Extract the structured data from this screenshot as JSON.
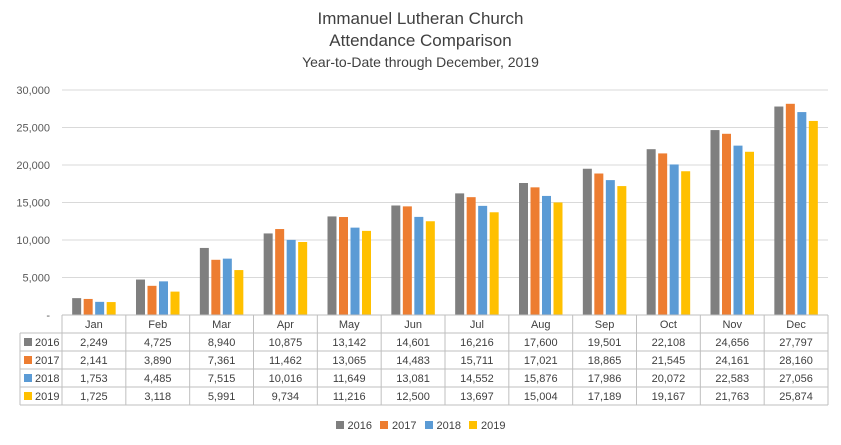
{
  "chart_data": {
    "type": "bar",
    "title": "Immanuel Lutheran Church",
    "subtitle": "Attendance Comparison",
    "subtitle2": "Year-to-Date through December, 2019",
    "categories": [
      "Jan",
      "Feb",
      "Mar",
      "Apr",
      "May",
      "Jun",
      "Jul",
      "Aug",
      "Sep",
      "Oct",
      "Nov",
      "Dec"
    ],
    "ylim": [
      0,
      30000
    ],
    "yticks": [
      "-",
      "5,000",
      "10,000",
      "15,000",
      "20,000",
      "25,000",
      "30,000"
    ],
    "xlabel": "",
    "ylabel": "",
    "legend_position": "bottom",
    "series": [
      {
        "name": "2016",
        "color": "#7f7f7f",
        "values": [
          2249,
          4725,
          8940,
          10875,
          13142,
          14601,
          16216,
          17600,
          19501,
          22108,
          24656,
          27797
        ],
        "labels": [
          "2,249",
          "4,725",
          "8,940",
          "10,875",
          "13,142",
          "14,601",
          "16,216",
          "17,600",
          "19,501",
          "22,108",
          "24,656",
          "27,797"
        ]
      },
      {
        "name": "2017",
        "color": "#ed7d31",
        "values": [
          2141,
          3890,
          7361,
          11462,
          13065,
          14483,
          15711,
          17021,
          18865,
          21545,
          24161,
          28160
        ],
        "labels": [
          "2,141",
          "3,890",
          "7,361",
          "11,462",
          "13,065",
          "14,483",
          "15,711",
          "17,021",
          "18,865",
          "21,545",
          "24,161",
          "28,160"
        ]
      },
      {
        "name": "2018",
        "color": "#5b9bd5",
        "values": [
          1753,
          4485,
          7515,
          10016,
          11649,
          13081,
          14552,
          15876,
          17986,
          20072,
          22583,
          27056
        ],
        "labels": [
          "1,753",
          "4,485",
          "7,515",
          "10,016",
          "11,649",
          "13,081",
          "14,552",
          "15,876",
          "17,986",
          "20,072",
          "22,583",
          "27,056"
        ]
      },
      {
        "name": "2019",
        "color": "#ffc000",
        "values": [
          1725,
          3118,
          5991,
          9734,
          11216,
          12500,
          13697,
          15004,
          17189,
          19167,
          21763,
          25874
        ],
        "labels": [
          "1,725",
          "3,118",
          "5,991",
          "9,734",
          "11,216",
          "12,500",
          "13,697",
          "15,004",
          "17,189",
          "19,167",
          "21,763",
          "25,874"
        ]
      }
    ]
  }
}
